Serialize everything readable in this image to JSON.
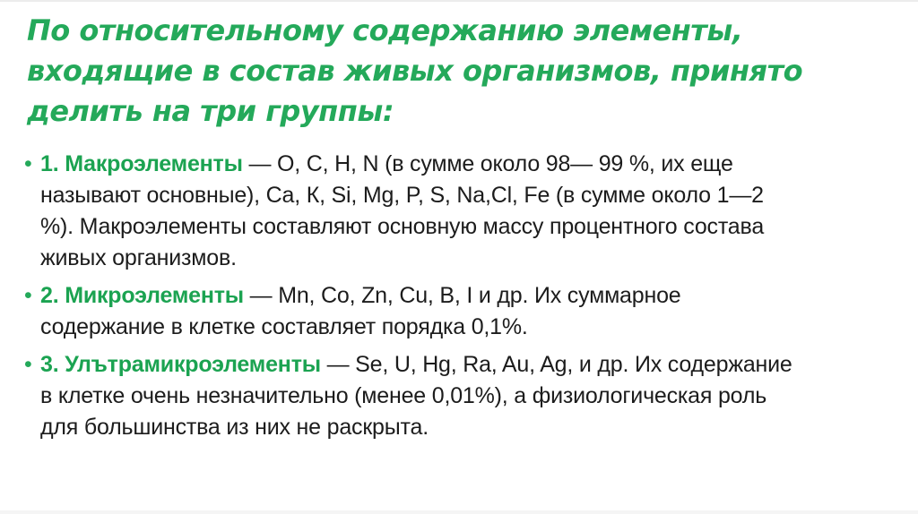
{
  "slide": {
    "background_color": "#ffffff",
    "title": "По относительному содержанию элементы, входящие в состав живых организмов, принято делить на три группы:",
    "title_color": "#24A95A",
    "header_color": "#1BA351",
    "body_color": "#1c1c1c",
    "bullet_marker": "•",
    "bullets": [
      {
        "label": "1. Макроэлементы",
        "text": " — O, C, H, N (в сумме около 98— 99 %, их еще называют основные), Ca, К, Si, Mg, P, S, Na,Cl, Fe (в сумме около 1—2 %). Макроэлементы составляют основную массу процентного состава живых организмов."
      },
      {
        "label": "2. Микроэлементы",
        "text": " — Mn, Co, Zn, Cu, B, I и др. Их суммарное содержание в клетке составляет порядка 0,1%."
      },
      {
        "label": "3. Улътрамикроэлементы",
        "text": " — Se, U, Hg, Ra, Au, Ag, и др. Их содержание в клетке очень незначительно (менее 0,01%), а физиологическая роль для большинства из них не раскрыта."
      }
    ]
  }
}
